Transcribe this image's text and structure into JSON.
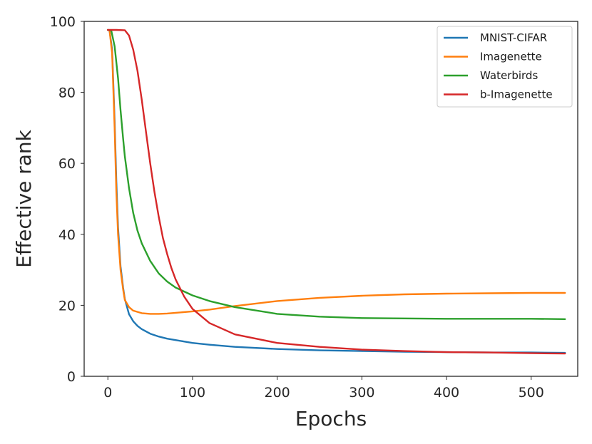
{
  "chart_data": {
    "type": "line",
    "title": "",
    "xlabel": "Epochs",
    "ylabel": "Effective rank",
    "xlim": [
      -28,
      555
    ],
    "ylim": [
      0,
      100
    ],
    "xticks": [
      0,
      100,
      200,
      300,
      400,
      500
    ],
    "yticks": [
      0,
      20,
      40,
      60,
      80,
      100
    ],
    "grid": false,
    "legend_position": "top-right",
    "series": [
      {
        "name": "MNIST-CIFAR",
        "color": "#1f77b4",
        "x": [
          0,
          2,
          5,
          8,
          10,
          12,
          15,
          18,
          20,
          25,
          30,
          35,
          40,
          50,
          60,
          70,
          80,
          100,
          120,
          150,
          200,
          250,
          300,
          350,
          400,
          450,
          500,
          540
        ],
        "y": [
          97.6,
          97.4,
          92,
          72,
          55,
          42,
          31,
          25,
          21.8,
          17.5,
          15.5,
          14.2,
          13.3,
          12,
          11.2,
          10.6,
          10.2,
          9.4,
          8.9,
          8.3,
          7.7,
          7.3,
          7.1,
          6.9,
          6.8,
          6.7,
          6.7,
          6.6
        ]
      },
      {
        "name": "Imagenette",
        "color": "#ff7f0e",
        "x": [
          0,
          2,
          5,
          8,
          10,
          12,
          15,
          18,
          20,
          25,
          30,
          40,
          50,
          60,
          70,
          80,
          100,
          120,
          150,
          200,
          250,
          300,
          350,
          400,
          450,
          500,
          540
        ],
        "y": [
          97.6,
          97.4,
          91,
          70,
          52,
          40,
          30,
          24.5,
          21.5,
          19.5,
          18.5,
          17.8,
          17.6,
          17.6,
          17.7,
          17.9,
          18.3,
          18.8,
          19.8,
          21.2,
          22.1,
          22.7,
          23.1,
          23.3,
          23.4,
          23.5,
          23.5
        ]
      },
      {
        "name": "Waterbirds",
        "color": "#2ca02c",
        "x": [
          0,
          4,
          8,
          12,
          15,
          18,
          20,
          25,
          30,
          35,
          40,
          50,
          60,
          70,
          80,
          100,
          120,
          150,
          200,
          250,
          300,
          350,
          400,
          450,
          500,
          540
        ],
        "y": [
          97.6,
          97.4,
          93,
          84,
          75,
          67,
          62,
          53,
          46,
          41,
          37.5,
          32.5,
          29,
          26.7,
          25,
          22.8,
          21.2,
          19.5,
          17.6,
          16.8,
          16.4,
          16.3,
          16.2,
          16.2,
          16.2,
          16.1
        ]
      },
      {
        "name": "b-Imagenette",
        "color": "#d62728",
        "x": [
          0,
          10,
          20,
          25,
          30,
          35,
          40,
          45,
          50,
          55,
          60,
          65,
          70,
          75,
          80,
          90,
          100,
          120,
          150,
          200,
          250,
          300,
          350,
          400,
          450,
          500,
          540
        ],
        "y": [
          97.6,
          97.6,
          97.5,
          96,
          92,
          86,
          78,
          69,
          60,
          52,
          45,
          39,
          34.5,
          30.5,
          27.3,
          22.5,
          19,
          15,
          11.8,
          9.4,
          8.3,
          7.5,
          7.1,
          6.8,
          6.7,
          6.5,
          6.4
        ]
      }
    ]
  }
}
